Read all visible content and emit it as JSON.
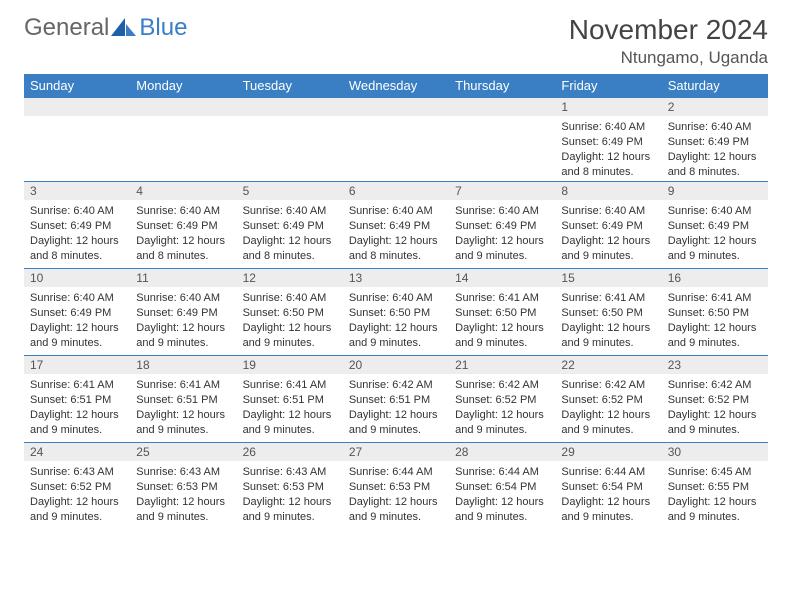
{
  "brand": {
    "part1": "General",
    "part2": "Blue"
  },
  "title": "November 2024",
  "location": "Ntungamo, Uganda",
  "colors": {
    "accent": "#3a7fc4",
    "header_bg": "#3a7fc4",
    "daynum_bg": "#ededed"
  },
  "weekdays": [
    "Sunday",
    "Monday",
    "Tuesday",
    "Wednesday",
    "Thursday",
    "Friday",
    "Saturday"
  ],
  "weeks": [
    [
      {
        "n": "",
        "sr": "",
        "ss": "",
        "dl": ""
      },
      {
        "n": "",
        "sr": "",
        "ss": "",
        "dl": ""
      },
      {
        "n": "",
        "sr": "",
        "ss": "",
        "dl": ""
      },
      {
        "n": "",
        "sr": "",
        "ss": "",
        "dl": ""
      },
      {
        "n": "",
        "sr": "",
        "ss": "",
        "dl": ""
      },
      {
        "n": "1",
        "sr": "Sunrise: 6:40 AM",
        "ss": "Sunset: 6:49 PM",
        "dl": "Daylight: 12 hours and 8 minutes."
      },
      {
        "n": "2",
        "sr": "Sunrise: 6:40 AM",
        "ss": "Sunset: 6:49 PM",
        "dl": "Daylight: 12 hours and 8 minutes."
      }
    ],
    [
      {
        "n": "3",
        "sr": "Sunrise: 6:40 AM",
        "ss": "Sunset: 6:49 PM",
        "dl": "Daylight: 12 hours and 8 minutes."
      },
      {
        "n": "4",
        "sr": "Sunrise: 6:40 AM",
        "ss": "Sunset: 6:49 PM",
        "dl": "Daylight: 12 hours and 8 minutes."
      },
      {
        "n": "5",
        "sr": "Sunrise: 6:40 AM",
        "ss": "Sunset: 6:49 PM",
        "dl": "Daylight: 12 hours and 8 minutes."
      },
      {
        "n": "6",
        "sr": "Sunrise: 6:40 AM",
        "ss": "Sunset: 6:49 PM",
        "dl": "Daylight: 12 hours and 8 minutes."
      },
      {
        "n": "7",
        "sr": "Sunrise: 6:40 AM",
        "ss": "Sunset: 6:49 PM",
        "dl": "Daylight: 12 hours and 9 minutes."
      },
      {
        "n": "8",
        "sr": "Sunrise: 6:40 AM",
        "ss": "Sunset: 6:49 PM",
        "dl": "Daylight: 12 hours and 9 minutes."
      },
      {
        "n": "9",
        "sr": "Sunrise: 6:40 AM",
        "ss": "Sunset: 6:49 PM",
        "dl": "Daylight: 12 hours and 9 minutes."
      }
    ],
    [
      {
        "n": "10",
        "sr": "Sunrise: 6:40 AM",
        "ss": "Sunset: 6:49 PM",
        "dl": "Daylight: 12 hours and 9 minutes."
      },
      {
        "n": "11",
        "sr": "Sunrise: 6:40 AM",
        "ss": "Sunset: 6:49 PM",
        "dl": "Daylight: 12 hours and 9 minutes."
      },
      {
        "n": "12",
        "sr": "Sunrise: 6:40 AM",
        "ss": "Sunset: 6:50 PM",
        "dl": "Daylight: 12 hours and 9 minutes."
      },
      {
        "n": "13",
        "sr": "Sunrise: 6:40 AM",
        "ss": "Sunset: 6:50 PM",
        "dl": "Daylight: 12 hours and 9 minutes."
      },
      {
        "n": "14",
        "sr": "Sunrise: 6:41 AM",
        "ss": "Sunset: 6:50 PM",
        "dl": "Daylight: 12 hours and 9 minutes."
      },
      {
        "n": "15",
        "sr": "Sunrise: 6:41 AM",
        "ss": "Sunset: 6:50 PM",
        "dl": "Daylight: 12 hours and 9 minutes."
      },
      {
        "n": "16",
        "sr": "Sunrise: 6:41 AM",
        "ss": "Sunset: 6:50 PM",
        "dl": "Daylight: 12 hours and 9 minutes."
      }
    ],
    [
      {
        "n": "17",
        "sr": "Sunrise: 6:41 AM",
        "ss": "Sunset: 6:51 PM",
        "dl": "Daylight: 12 hours and 9 minutes."
      },
      {
        "n": "18",
        "sr": "Sunrise: 6:41 AM",
        "ss": "Sunset: 6:51 PM",
        "dl": "Daylight: 12 hours and 9 minutes."
      },
      {
        "n": "19",
        "sr": "Sunrise: 6:41 AM",
        "ss": "Sunset: 6:51 PM",
        "dl": "Daylight: 12 hours and 9 minutes."
      },
      {
        "n": "20",
        "sr": "Sunrise: 6:42 AM",
        "ss": "Sunset: 6:51 PM",
        "dl": "Daylight: 12 hours and 9 minutes."
      },
      {
        "n": "21",
        "sr": "Sunrise: 6:42 AM",
        "ss": "Sunset: 6:52 PM",
        "dl": "Daylight: 12 hours and 9 minutes."
      },
      {
        "n": "22",
        "sr": "Sunrise: 6:42 AM",
        "ss": "Sunset: 6:52 PM",
        "dl": "Daylight: 12 hours and 9 minutes."
      },
      {
        "n": "23",
        "sr": "Sunrise: 6:42 AM",
        "ss": "Sunset: 6:52 PM",
        "dl": "Daylight: 12 hours and 9 minutes."
      }
    ],
    [
      {
        "n": "24",
        "sr": "Sunrise: 6:43 AM",
        "ss": "Sunset: 6:52 PM",
        "dl": "Daylight: 12 hours and 9 minutes."
      },
      {
        "n": "25",
        "sr": "Sunrise: 6:43 AM",
        "ss": "Sunset: 6:53 PM",
        "dl": "Daylight: 12 hours and 9 minutes."
      },
      {
        "n": "26",
        "sr": "Sunrise: 6:43 AM",
        "ss": "Sunset: 6:53 PM",
        "dl": "Daylight: 12 hours and 9 minutes."
      },
      {
        "n": "27",
        "sr": "Sunrise: 6:44 AM",
        "ss": "Sunset: 6:53 PM",
        "dl": "Daylight: 12 hours and 9 minutes."
      },
      {
        "n": "28",
        "sr": "Sunrise: 6:44 AM",
        "ss": "Sunset: 6:54 PM",
        "dl": "Daylight: 12 hours and 9 minutes."
      },
      {
        "n": "29",
        "sr": "Sunrise: 6:44 AM",
        "ss": "Sunset: 6:54 PM",
        "dl": "Daylight: 12 hours and 9 minutes."
      },
      {
        "n": "30",
        "sr": "Sunrise: 6:45 AM",
        "ss": "Sunset: 6:55 PM",
        "dl": "Daylight: 12 hours and 9 minutes."
      }
    ]
  ]
}
